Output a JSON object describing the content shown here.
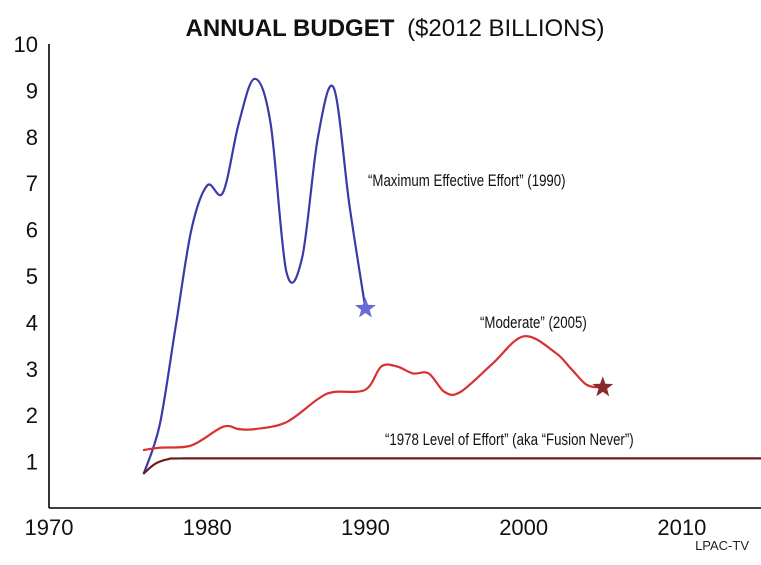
{
  "chart_data": {
    "type": "line",
    "title_bold": "ANNUAL BUDGET",
    "title_rest": "($2012 BILLIONS)",
    "xlabel": "",
    "ylabel": "",
    "xlim": [
      1970,
      2015
    ],
    "ylim": [
      0,
      10
    ],
    "x_ticks": [
      "1970",
      "1980",
      "1990",
      "2000",
      "2010"
    ],
    "y_ticks": [
      "1",
      "2",
      "3",
      "4",
      "5",
      "6",
      "7",
      "8",
      "9",
      "10"
    ],
    "grid": false,
    "legend": "none",
    "series": [
      {
        "name": "“Maximum Effective Effort” (1990)",
        "color": "#3a3aa8",
        "marker_color": "#6a6ad6",
        "end_marker": "star",
        "points": [
          [
            1976,
            0.75
          ],
          [
            1977,
            1.8
          ],
          [
            1978,
            3.9
          ],
          [
            1979,
            6.0
          ],
          [
            1980,
            6.95
          ],
          [
            1981,
            6.8
          ],
          [
            1982,
            8.3
          ],
          [
            1983,
            9.25
          ],
          [
            1984,
            8.3
          ],
          [
            1985,
            5.1
          ],
          [
            1986,
            5.4
          ],
          [
            1987,
            8.0
          ],
          [
            1988,
            9.05
          ],
          [
            1989,
            6.5
          ],
          [
            1990,
            4.3
          ]
        ]
      },
      {
        "name": "“Moderate” (2005)",
        "color": "#d93030",
        "marker_color": "#8b2a2a",
        "end_marker": "star",
        "points": [
          [
            1976,
            1.25
          ],
          [
            1977,
            1.3
          ],
          [
            1979,
            1.35
          ],
          [
            1981,
            1.75
          ],
          [
            1982,
            1.7
          ],
          [
            1983,
            1.7
          ],
          [
            1985,
            1.85
          ],
          [
            1987,
            2.35
          ],
          [
            1988,
            2.5
          ],
          [
            1990,
            2.55
          ],
          [
            1991,
            3.05
          ],
          [
            1992,
            3.05
          ],
          [
            1993,
            2.9
          ],
          [
            1994,
            2.9
          ],
          [
            1995,
            2.5
          ],
          [
            1996,
            2.5
          ],
          [
            1998,
            3.1
          ],
          [
            2000,
            3.7
          ],
          [
            2002,
            3.35
          ],
          [
            2003,
            3.0
          ],
          [
            2004,
            2.65
          ],
          [
            2005,
            2.6
          ]
        ]
      },
      {
        "name": "“1978 Level of Effort” (aka “Fusion Never”)",
        "color": "#6b1c1c",
        "end_marker": "none",
        "points": [
          [
            1976,
            0.75
          ],
          [
            1976.7,
            0.95
          ],
          [
            1977.5,
            1.05
          ],
          [
            1978.5,
            1.07
          ],
          [
            1985,
            1.07
          ],
          [
            1995,
            1.07
          ],
          [
            2005,
            1.07
          ],
          [
            2015,
            1.07
          ]
        ]
      }
    ],
    "annotations": [
      {
        "text": "“Maximum Effective Effort” (1990)"
      },
      {
        "text": "“Moderate” (2005)"
      },
      {
        "text": "“1978 Level of Effort” (aka “Fusion Never”)"
      }
    ],
    "credit": "LPAC-TV"
  }
}
